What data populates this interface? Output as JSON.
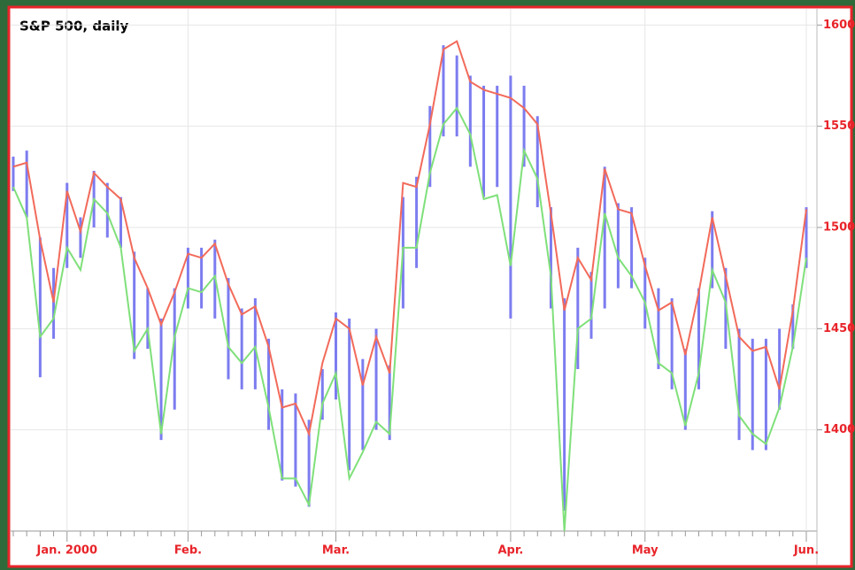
{
  "chart_data": {
    "type": "line",
    "title": "S&P 500, daily",
    "categories": [
      null,
      null,
      null,
      null,
      "Jan. 2000",
      null,
      null,
      null,
      null,
      null,
      null,
      null,
      null,
      "Feb.",
      null,
      null,
      null,
      null,
      null,
      null,
      null,
      null,
      null,
      null,
      "Mar.",
      null,
      null,
      null,
      null,
      null,
      null,
      null,
      null,
      null,
      null,
      null,
      null,
      "Apr.",
      null,
      null,
      null,
      null,
      null,
      null,
      null,
      null,
      null,
      "May",
      null,
      null,
      null,
      null,
      null,
      null,
      null,
      null,
      null,
      null,
      null,
      "Jun."
    ],
    "series": [
      {
        "color": "#f26a5a",
        "values": [
          1530,
          1532,
          1494,
          1463,
          1518,
          1498,
          1527,
          1520,
          1514,
          1485,
          1470,
          1452,
          1468,
          1487,
          1485,
          1492,
          1472,
          1457,
          1461,
          1441,
          1411,
          1413,
          1398,
          1433,
          1455,
          1450,
          1422,
          1446,
          1428,
          1522,
          1520,
          1551,
          1588,
          1592,
          1572,
          1568,
          1566,
          1564,
          1559,
          1551,
          1507,
          1459,
          1485,
          1474,
          1529,
          1509,
          1507,
          1481,
          1459,
          1463,
          1437,
          1468,
          1505,
          1476,
          1446,
          1439,
          1441,
          1420,
          1459,
          1509
        ]
      },
      {
        "color": "#7fe07a",
        "values": [
          1520,
          1505,
          1446,
          1455,
          1490,
          1479,
          1514,
          1507,
          1490,
          1439,
          1450,
          1398,
          1446,
          1470,
          1468,
          1476,
          1441,
          1433,
          1441,
          1411,
          1376,
          1376,
          1363,
          1413,
          1428,
          1376,
          1389,
          1404,
          1398,
          1490,
          1490,
          1527,
          1551,
          1559,
          1546,
          1514,
          1516,
          1481,
          1538,
          1524,
          1476,
          1350,
          1450,
          1455,
          1507,
          1485,
          1476,
          1463,
          1433,
          1428,
          1402,
          1428,
          1479,
          1463,
          1407,
          1398,
          1393,
          1411,
          1441,
          1485
        ]
      }
    ],
    "range_bars": {
      "color": "#7c7cf0",
      "high": [
        1535,
        1538,
        1495,
        1480,
        1522,
        1505,
        1528,
        1522,
        1515,
        1488,
        1470,
        1455,
        1470,
        1490,
        1490,
        1494,
        1475,
        1460,
        1465,
        1445,
        1420,
        1418,
        1405,
        1430,
        1458,
        1455,
        1435,
        1450,
        1432,
        1515,
        1525,
        1560,
        1590,
        1585,
        1575,
        1570,
        1570,
        1575,
        1570,
        1555,
        1510,
        1465,
        1490,
        1478,
        1530,
        1512,
        1510,
        1485,
        1470,
        1465,
        1440,
        1470,
        1508,
        1480,
        1450,
        1445,
        1445,
        1450,
        1462,
        1510
      ],
      "low": [
        1518,
        1505,
        1426,
        1445,
        1480,
        1485,
        1500,
        1495,
        1490,
        1435,
        1440,
        1395,
        1410,
        1460,
        1460,
        1455,
        1425,
        1420,
        1420,
        1400,
        1375,
        1372,
        1362,
        1405,
        1415,
        1380,
        1390,
        1400,
        1395,
        1460,
        1480,
        1520,
        1545,
        1545,
        1530,
        1515,
        1520,
        1455,
        1530,
        1510,
        1460,
        1360,
        1430,
        1445,
        1460,
        1470,
        1470,
        1450,
        1430,
        1420,
        1400,
        1420,
        1470,
        1440,
        1395,
        1390,
        1390,
        1410,
        1440,
        1480
      ]
    },
    "ylim": [
      1350,
      1608
    ],
    "yticks": [
      1400,
      1450,
      1500,
      1550,
      1600
    ],
    "grid": true
  }
}
